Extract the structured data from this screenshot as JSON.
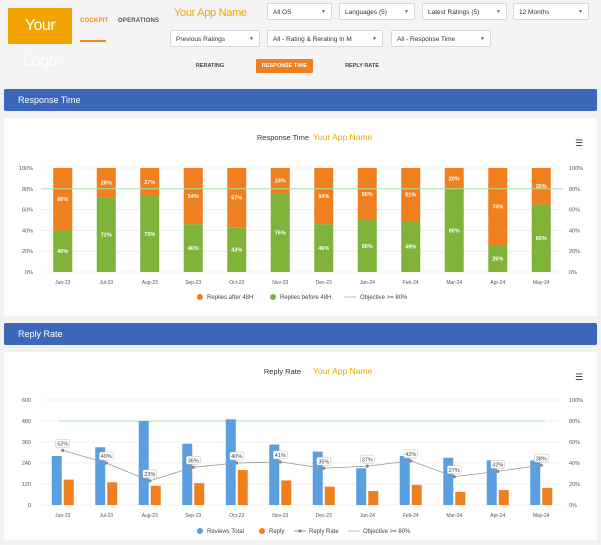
{
  "header": {
    "logo_text": "Your Logo",
    "nav": [
      {
        "label": "COCKPIT"
      },
      {
        "label": "OPERATIONS"
      }
    ],
    "app_name": "Your App Name",
    "filters_row1": [
      "All OS",
      "Languages (5)",
      "Latest Ratings (5)",
      "12 Months"
    ],
    "filters_row2": [
      "Previous Ratings",
      "All - Rating & Rerating In M",
      "All - Response Time"
    ],
    "subtabs": [
      "RERATING",
      "RESPONSE TIME",
      "REPLY RATE"
    ]
  },
  "sections": {
    "response_time": "Response Time",
    "reply_rate": "Reply Rate"
  },
  "colors": {
    "orange": "#f07f1f",
    "green": "#7fb33a",
    "blue": "#5aa0e0",
    "objective": "#a8e0a8",
    "band": "#3a67b8",
    "app_name": "#f0a500"
  },
  "chart_data": [
    {
      "type": "bar",
      "title": "Response Time",
      "subtitle": "Your App Name",
      "categories": [
        "Jun-23",
        "Jul-23",
        "Aug-23",
        "Sep-23",
        "Oct-23",
        "Nov-23",
        "Dec-23",
        "Jan-24",
        "Feb-24",
        "Mar-24",
        "Apr-24",
        "May-24"
      ],
      "stacked": true,
      "ylim": [
        0,
        100
      ],
      "yticks": [
        "0%",
        "20%",
        "40%",
        "60%",
        "80%",
        "100%"
      ],
      "series": [
        {
          "name": "Replies after 48H",
          "values": [
            60,
            28,
            27,
            54,
            57,
            24,
            54,
            50,
            51,
            20,
            74,
            35
          ],
          "labels": [
            "60%",
            "28%",
            "27%",
            "54%",
            "57%",
            "24%",
            "54%",
            "50%",
            "51%",
            "20%",
            "74%",
            "35%"
          ]
        },
        {
          "name": "Replies before 48H",
          "values": [
            40,
            72,
            73,
            46,
            43,
            76,
            46,
            50,
            49,
            80,
            26,
            65
          ],
          "labels": [
            "40%",
            "72%",
            "73%",
            "46%",
            "43%",
            "76%",
            "46%",
            "50%",
            "49%",
            "80%",
            "26%",
            "65%"
          ]
        },
        {
          "name": "Objective >= 80%",
          "value": 80
        }
      ],
      "legend": "bottom"
    },
    {
      "type": "bar",
      "title": "Reply Rate",
      "subtitle": "Your App Name",
      "categories": [
        "Jun-23",
        "Jul-23",
        "Aug-23",
        "Sep-23",
        "Oct-23",
        "Nov-23",
        "Dec-23",
        "Jan-24",
        "Feb-24",
        "Mar-24",
        "Apr-24",
        "May-24"
      ],
      "ylim_left": [
        0,
        600
      ],
      "yticks_left": [
        "0",
        "120",
        "240",
        "360",
        "480",
        "600"
      ],
      "ylim_right": [
        0,
        100
      ],
      "yticks_right": [
        "0%",
        "20%",
        "40%",
        "60%",
        "80%",
        "100%"
      ],
      "series": [
        {
          "name": "Reviews Total",
          "values": [
            280,
            330,
            480,
            350,
            490,
            345,
            305,
            210,
            280,
            270,
            255,
            255
          ]
        },
        {
          "name": "Reply",
          "values": [
            145,
            130,
            110,
            125,
            200,
            140,
            105,
            80,
            115,
            75,
            85,
            98
          ]
        },
        {
          "name": "Reply Rate",
          "values": [
            52,
            40,
            23,
            36,
            40,
            41,
            35,
            37,
            42,
            27,
            32,
            38
          ],
          "labels": [
            "52%",
            "40%",
            "23%",
            "36%",
            "40%",
            "41%",
            "35%",
            "37%",
            "42%",
            "27%",
            "32%",
            "38%"
          ]
        },
        {
          "name": "Objective >= 80%",
          "value": 80
        }
      ],
      "legend": "bottom"
    }
  ]
}
